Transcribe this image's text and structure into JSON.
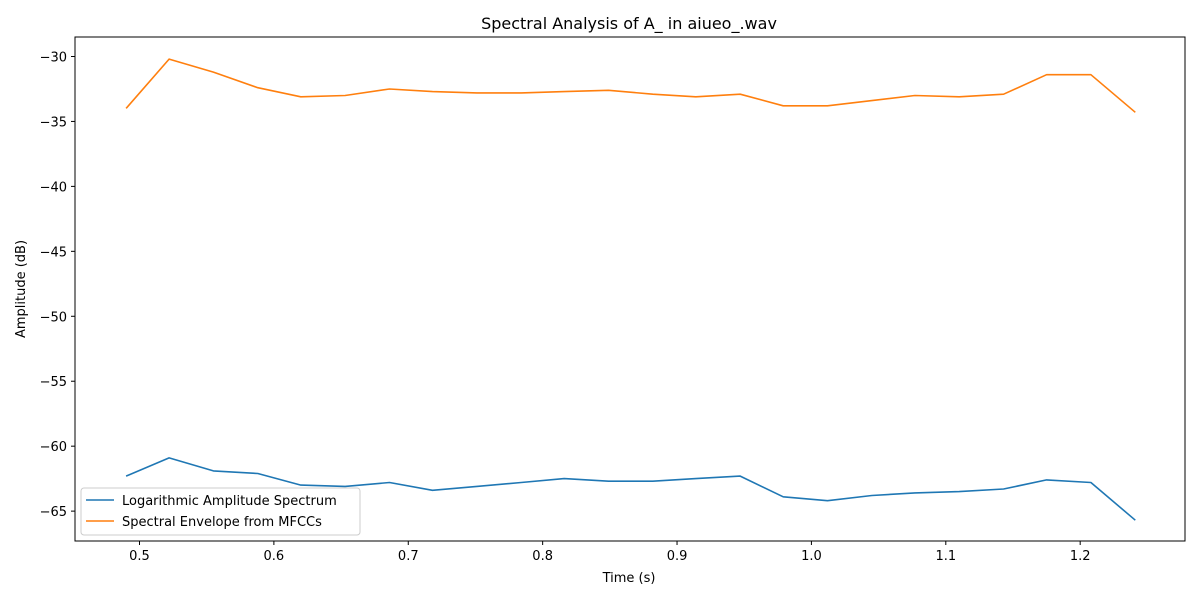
{
  "chart_data": {
    "type": "line",
    "title": "Spectral Analysis of A_ in aiueo_.wav",
    "xlabel": "Time (s)",
    "ylabel": "Amplitude (dB)",
    "xlim": [
      0.452,
      1.278
    ],
    "ylim": [
      -67.3,
      -28.5
    ],
    "xticks": [
      0.5,
      0.6,
      0.7,
      0.8,
      0.9,
      1.0,
      1.1,
      1.2
    ],
    "xtick_labels": [
      "0.5",
      "0.6",
      "0.7",
      "0.8",
      "0.9",
      "1.0",
      "1.1",
      "1.2"
    ],
    "yticks": [
      -30,
      -35,
      -40,
      -45,
      -50,
      -55,
      -60,
      -65
    ],
    "ytick_labels": [
      "−30",
      "−35",
      "−40",
      "−45",
      "−50",
      "−55",
      "−60",
      "−65"
    ],
    "grid": false,
    "legend_position": "lower-left",
    "x": [
      0.49,
      0.522,
      0.555,
      0.588,
      0.62,
      0.653,
      0.686,
      0.718,
      0.751,
      0.784,
      0.816,
      0.849,
      0.882,
      0.914,
      0.947,
      0.979,
      1.012,
      1.045,
      1.077,
      1.11,
      1.143,
      1.175,
      1.208,
      1.241
    ],
    "series": [
      {
        "name": "Logarithmic Amplitude Spectrum",
        "color": "#1f77b4",
        "values": [
          -62.3,
          -60.9,
          -61.9,
          -62.1,
          -63.0,
          -63.1,
          -62.8,
          -63.4,
          -63.1,
          -62.8,
          -62.5,
          -62.7,
          -62.7,
          -62.5,
          -62.3,
          -63.9,
          -64.2,
          -63.8,
          -63.6,
          -63.5,
          -63.3,
          -62.6,
          -62.8,
          -65.7
        ]
      },
      {
        "name": "Spectral Envelope from MFCCs",
        "color": "#ff7f0e",
        "values": [
          -34.0,
          -30.2,
          -31.2,
          -32.4,
          -33.1,
          -33.0,
          -32.5,
          -32.7,
          -32.8,
          -32.8,
          -32.7,
          -32.6,
          -32.9,
          -33.1,
          -32.9,
          -33.8,
          -33.8,
          -33.4,
          -33.0,
          -33.1,
          -32.9,
          -31.4,
          -31.4,
          -34.3
        ]
      }
    ]
  }
}
